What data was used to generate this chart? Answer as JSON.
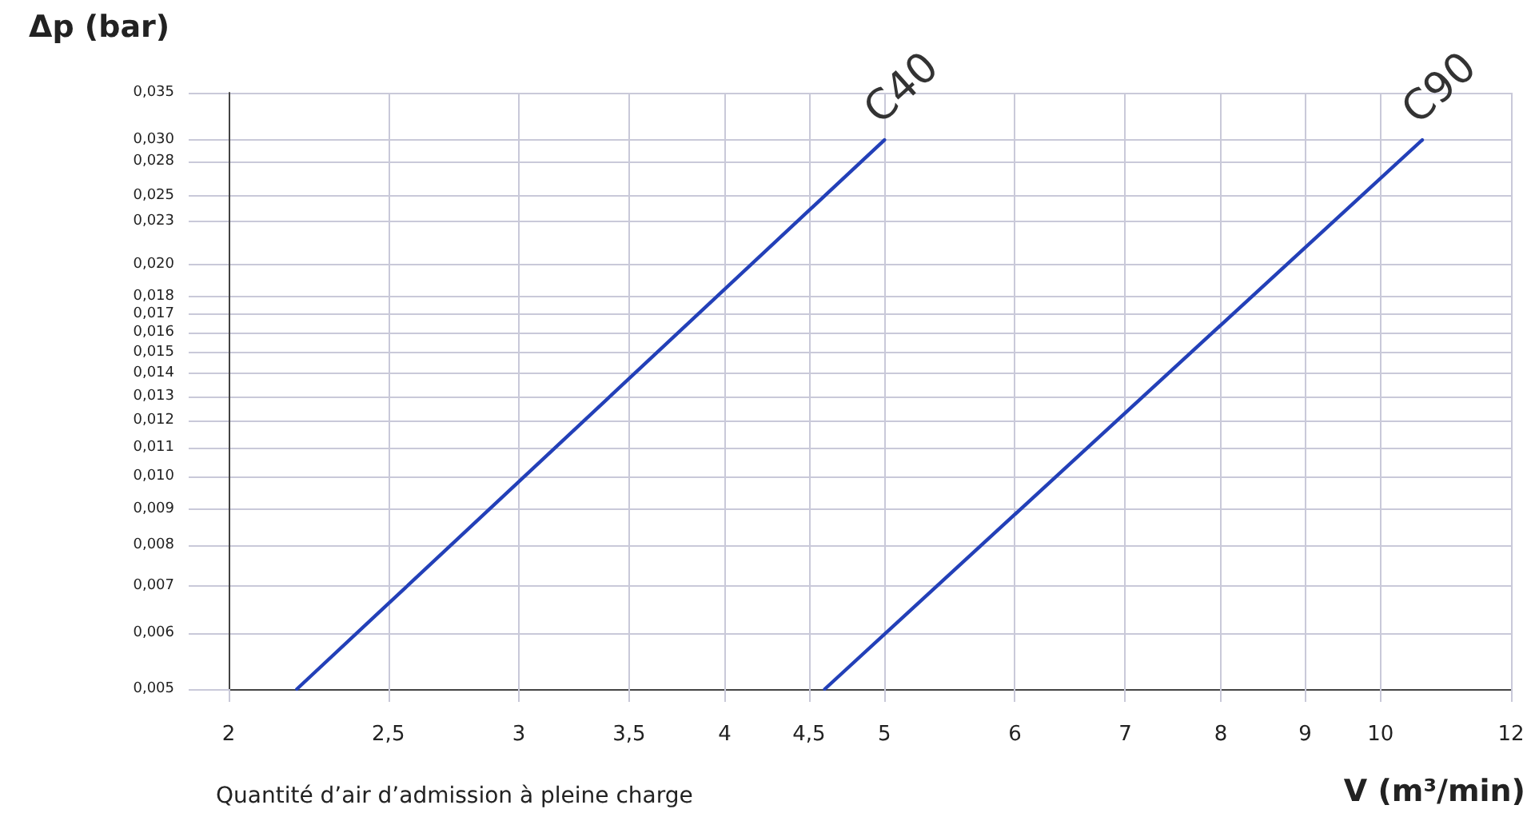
{
  "chart_data": {
    "type": "line",
    "ylabel": "Δp (bar)",
    "xlabel": "V (m³/min)",
    "annotations": [
      "Quantité d’air d’admission à pleine charge"
    ],
    "log": "xy",
    "grid": true,
    "marker": "none",
    "line_style": "solid",
    "xlim": [
      2,
      12
    ],
    "xticks": [
      2,
      {
        "value": 2.5,
        "label": "2,5"
      },
      3,
      {
        "value": 3.5,
        "label": "3,5"
      },
      4,
      {
        "value": 4.5,
        "label": "4,5"
      },
      5,
      6,
      7,
      8,
      9,
      10,
      12
    ],
    "ylim": [
      0.005,
      0.035
    ],
    "yticks": [
      {
        "value": 0.005,
        "label": "0,005"
      },
      {
        "value": 0.006,
        "label": "0,006"
      },
      {
        "value": 0.007,
        "label": "0,007"
      },
      {
        "value": 0.008,
        "label": "0,008"
      },
      {
        "value": 0.009,
        "label": "0,009"
      },
      {
        "value": 0.01,
        "label": "0,010"
      },
      {
        "value": 0.011,
        "label": "0,011"
      },
      {
        "value": 0.012,
        "label": "0,012"
      },
      {
        "value": 0.013,
        "label": "0,013"
      },
      {
        "value": 0.014,
        "label": "0,014"
      },
      {
        "value": 0.015,
        "label": "0,015"
      },
      {
        "value": 0.016,
        "label": "0,016"
      },
      {
        "value": 0.017,
        "label": "0,017"
      },
      {
        "value": 0.018,
        "label": "0,018"
      },
      {
        "value": 0.02,
        "label": "0,020"
      },
      {
        "value": 0.023,
        "label": "0,023"
      },
      {
        "value": 0.025,
        "label": "0,025"
      },
      {
        "value": 0.028,
        "label": "0,028"
      },
      {
        "value": 0.03,
        "label": "0,030"
      },
      {
        "value": 0.035,
        "label": "0,035"
      }
    ],
    "series": [
      {
        "name": "C40",
        "color": "#2340b8",
        "x": [
          2.2,
          5
        ],
        "values": [
          0.005,
          0.03
        ]
      },
      {
        "name": "C90",
        "color": "#2340b8",
        "x": [
          4.6,
          10.6
        ],
        "values": [
          0.005,
          0.03
        ]
      }
    ]
  }
}
